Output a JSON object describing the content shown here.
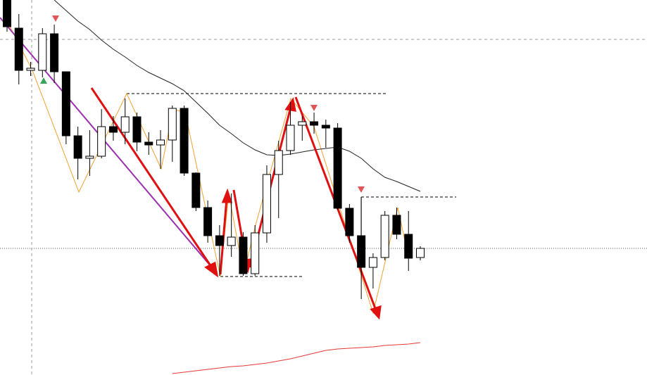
{
  "chart_data": {
    "type": "candlestick",
    "ylim": [
      0,
      533
    ],
    "open": [
      533,
      493,
      433,
      433,
      485,
      431,
      340,
      308,
      311,
      353,
      345,
      367,
      331,
      327,
      334,
      379,
      287,
      238,
      198,
      184,
      196,
      144,
      202,
      285,
      319,
      355,
      360,
      355,
      351,
      237,
      198,
      153,
      167,
      227,
      200,
      167
    ],
    "high": [
      533,
      513,
      445,
      493,
      498,
      431,
      353,
      348,
      378,
      368,
      393,
      373,
      345,
      348,
      383,
      383,
      288,
      248,
      213,
      258,
      203,
      213,
      298,
      333,
      388,
      368,
      373,
      363,
      358,
      243,
      253,
      173,
      233,
      238,
      233,
      183
    ],
    "low": [
      488,
      413,
      425,
      423,
      415,
      328,
      278,
      283,
      308,
      333,
      328,
      318,
      313,
      293,
      303,
      283,
      233,
      188,
      141,
      168,
      141,
      141,
      188,
      223,
      313,
      333,
      343,
      323,
      235,
      188,
      108,
      123,
      163,
      193,
      148,
      163
    ],
    "close": [
      495,
      433,
      436,
      485,
      431,
      340,
      308,
      311,
      353,
      345,
      367,
      331,
      327,
      334,
      379,
      287,
      238,
      198,
      184,
      196,
      144,
      202,
      285,
      319,
      355,
      360,
      355,
      351,
      237,
      198,
      153,
      167,
      227,
      200,
      166,
      180
    ],
    "up_color": "#ffffff",
    "down_color": "#000000",
    "series": [
      {
        "color": "#222222",
        "values": [
          null,
          null,
          null,
          null,
          533,
          518,
          503,
          491,
          476,
          463,
          452,
          440,
          430,
          422,
          414,
          404,
          388,
          372,
          355,
          343,
          330,
          320,
          313,
          312,
          314,
          317,
          320,
          322,
          324,
          318,
          308,
          293,
          281,
          275,
          268,
          261
        ]
      },
      {
        "color": "#e53935",
        "values": [
          null,
          null,
          null,
          null,
          null,
          null,
          null,
          null,
          null,
          null,
          null,
          null,
          null,
          null,
          2,
          4,
          6,
          8,
          10,
          12,
          13,
          15,
          17,
          20,
          23,
          27,
          31,
          35,
          37,
          38,
          39,
          40,
          42,
          43,
          44,
          46
        ]
      }
    ]
  }
}
